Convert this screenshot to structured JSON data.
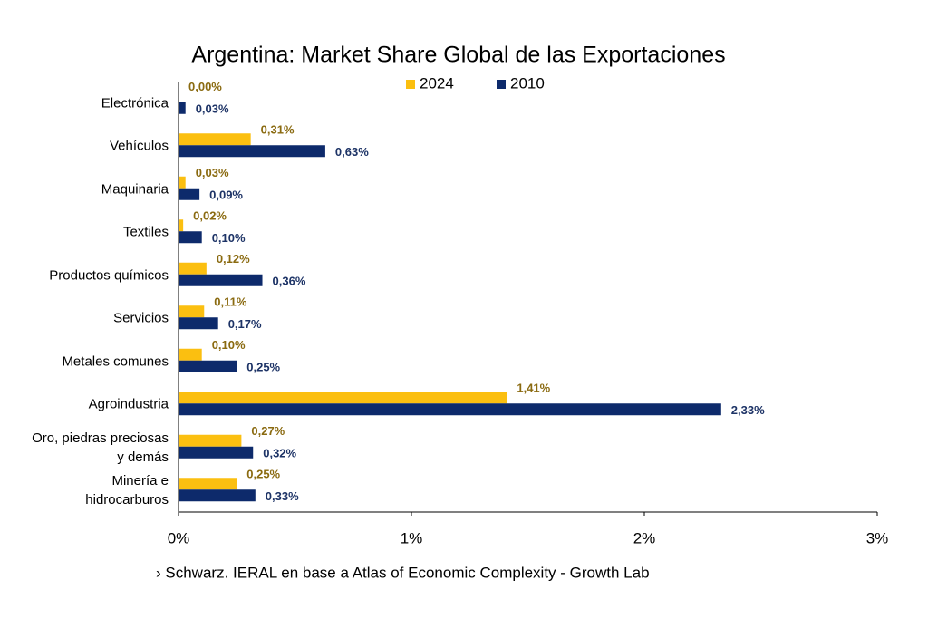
{
  "chart_data": {
    "type": "hbar",
    "title": "Argentina: Market Share Global de las Exportaciones",
    "source": "› Schwarz. IERAL en base a Atlas of Economic Complexity - Growth Lab",
    "categories": [
      "Electrónica",
      "Vehículos",
      "Maquinaria",
      "Textiles",
      "Productos químicos",
      "Servicios",
      "Metales comunes",
      "Agroindustria",
      "Oro, piedras preciosas\ny demás",
      "Minería e\nhidrocarburos"
    ],
    "series": [
      {
        "name": "2024",
        "color": "#fbbf10",
        "label_color": "#8a6a10",
        "values": [
          0.0,
          0.31,
          0.03,
          0.02,
          0.12,
          0.11,
          0.1,
          1.41,
          0.27,
          0.25
        ],
        "value_labels": [
          "0,00%",
          "0,31%",
          "0,03%",
          "0,02%",
          "0,12%",
          "0,11%",
          "0,10%",
          "1,41%",
          "0,27%",
          "0,25%"
        ]
      },
      {
        "name": "2010",
        "color": "#0d2a6b",
        "label_color": "#1d3366",
        "values": [
          0.03,
          0.63,
          0.09,
          0.1,
          0.36,
          0.17,
          0.25,
          2.33,
          0.32,
          0.33
        ],
        "value_labels": [
          "0,03%",
          "0,63%",
          "0,09%",
          "0,10%",
          "0,36%",
          "0,17%",
          "0,25%",
          "2,33%",
          "0,32%",
          "0,33%"
        ]
      }
    ],
    "xlim": [
      0,
      3
    ],
    "xticks": [
      {
        "value": 0,
        "label": "0%"
      },
      {
        "value": 1,
        "label": "1%"
      },
      {
        "value": 2,
        "label": "2%"
      },
      {
        "value": 3,
        "label": "3%"
      }
    ],
    "legend": "top"
  }
}
